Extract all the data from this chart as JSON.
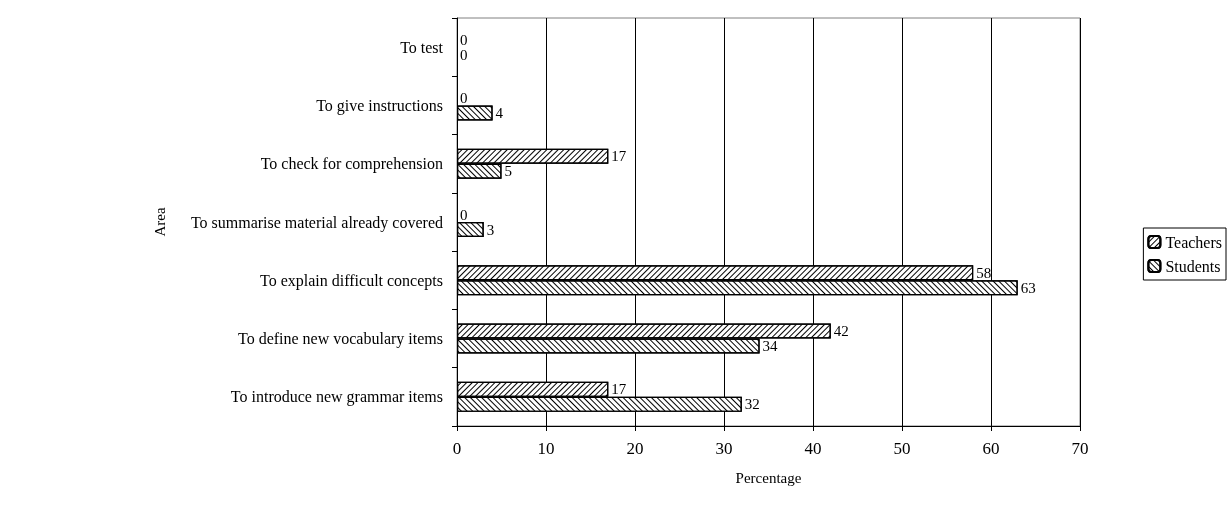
{
  "chart_data": {
    "type": "bar",
    "orientation": "horizontal",
    "xlabel": "Percentage",
    "ylabel": "Area",
    "categories": [
      "To test",
      "To give instructions",
      "To check for comprehension",
      "To summarise material already covered",
      "To explain difficult concepts",
      "To define new vocabulary items",
      "To introduce new grammar items"
    ],
    "series": [
      {
        "name": "Teachers",
        "color": "#ffffff",
        "values": [
          0,
          0,
          17,
          0,
          58,
          42,
          17
        ]
      },
      {
        "name": "Students",
        "color": "#ffffff",
        "values": [
          0,
          4,
          5,
          3,
          63,
          34,
          32
        ]
      }
    ],
    "xlim": [
      0,
      70
    ],
    "xticks": [
      0,
      10,
      20,
      30,
      40,
      50,
      60,
      70
    ],
    "grid": "x",
    "legend": "right",
    "data_labels": true
  }
}
